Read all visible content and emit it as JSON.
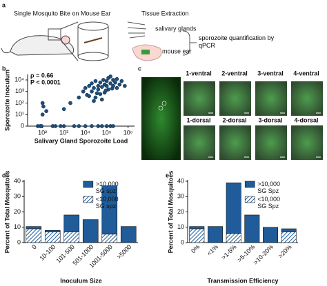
{
  "panel_labels": [
    "a",
    "b",
    "c",
    "d",
    "e"
  ],
  "diagram": {
    "title_left": "Single Mosquito Bite on Mouse Ear",
    "title_right": "Tissue Extraction",
    "salivary": "salivary glands",
    "ear": "mouse ear",
    "result": "sporozoite quantification by qPCR"
  },
  "images": {
    "labels": [
      "1-ventral",
      "2-ventral",
      "3-ventral",
      "4-ventral",
      "1-dorsal",
      "2-dorsal",
      "3-dorsal",
      "4-dorsal"
    ]
  },
  "chart_data": [
    {
      "type": "scatter",
      "xlabel": "Salivary Gland Sporozoite Load",
      "ylabel": "Sporozoite Inoculum",
      "annotations": [
        "ρ = 0.66",
        "P < 0.0001"
      ],
      "color": "#1f4e79",
      "log_x": true,
      "log_y": true,
      "x": [
        60,
        80,
        90,
        300,
        400,
        700,
        1000,
        3000,
        5000,
        10000,
        20000,
        40000,
        60000,
        100000,
        150000,
        200000,
        100,
        100,
        110,
        150,
        1000,
        2000,
        5000,
        8000,
        10000,
        12000,
        15000,
        20000,
        20000,
        25000,
        30000,
        30000,
        40000,
        40000,
        50000,
        50000,
        60000,
        70000,
        80000,
        80000,
        100000,
        100000,
        120000,
        120000,
        150000,
        150000,
        200000,
        200000,
        250000,
        300000,
        300000,
        400000,
        500000,
        15000,
        35000,
        90000,
        180000,
        60000,
        25000,
        700000
      ],
      "y": [
        0,
        0,
        0,
        0,
        0,
        0,
        0,
        0,
        0,
        0,
        0,
        0,
        0,
        0,
        0,
        0,
        10,
        100,
        50,
        20,
        30,
        100,
        300,
        1000,
        2000,
        500,
        3000,
        1000,
        5000,
        2000,
        300,
        8000,
        3000,
        1500,
        600,
        6000,
        2500,
        10000,
        4000,
        800,
        3000,
        8000,
        1500,
        15000,
        5000,
        20000,
        3000,
        10000,
        6000,
        2000,
        12000,
        4000,
        8000,
        400,
        700,
        1200,
        1800,
        200,
        150,
        3000
      ],
      "xlim": [
        20,
        2000000
      ],
      "ylim": [
        1,
        30000
      ],
      "xticks": [
        {
          "value": 100,
          "label": "10²"
        },
        {
          "value": 1000,
          "label": "10³"
        },
        {
          "value": 10000,
          "label": "10⁴"
        },
        {
          "value": 100000,
          "label": "10⁵"
        },
        {
          "value": 1000000,
          "label": "10⁶"
        }
      ],
      "yticks": [
        0,
        {
          "value": 10,
          "label": "10¹"
        },
        {
          "value": 100,
          "label": "10²"
        },
        {
          "value": 1000,
          "label": "10³"
        },
        {
          "value": 10000,
          "label": "10⁴"
        }
      ]
    },
    {
      "type": "bar",
      "stacked": true,
      "xlabel": "Inoculum Size",
      "ylabel": "Percent of Total Mosquitoes",
      "categories": [
        "0",
        "10-100",
        "101-500",
        "501-1000",
        "1001-5000",
        ">5000"
      ],
      "series": [
        {
          "name": ">10,000 SG spz",
          "color": "#1f5c99",
          "hatch": false,
          "values": [
            1.5,
            1,
            11,
            15,
            31.5,
            10.5
          ]
        },
        {
          "name": "<10,000 SG spz",
          "color": "#1f5c99",
          "hatch": true,
          "values": [
            9,
            7,
            7,
            0,
            5.5,
            0
          ]
        }
      ],
      "ylim": [
        0,
        40
      ],
      "yticks": [
        0,
        10,
        20,
        30,
        40
      ]
    },
    {
      "type": "bar",
      "stacked": true,
      "xlabel": "Transmission Efficiency",
      "ylabel": "Percent of Total Mosquitoes",
      "categories": [
        "0%",
        "<1%",
        ">1-5%",
        ">5-10%",
        ">10-20%",
        ">20%"
      ],
      "series": [
        {
          "name": ">10,000 SG Spz",
          "color": "#1f5c99",
          "hatch": false,
          "values": [
            1.5,
            10.5,
            33,
            18,
            10,
            2
          ]
        },
        {
          "name": "<10,000 SG Spz",
          "color": "#1f5c99",
          "hatch": true,
          "values": [
            9,
            0,
            6,
            0,
            0,
            7
          ]
        }
      ],
      "ylim": [
        0,
        40
      ],
      "yticks": [
        0,
        10,
        20,
        30,
        40
      ]
    }
  ]
}
